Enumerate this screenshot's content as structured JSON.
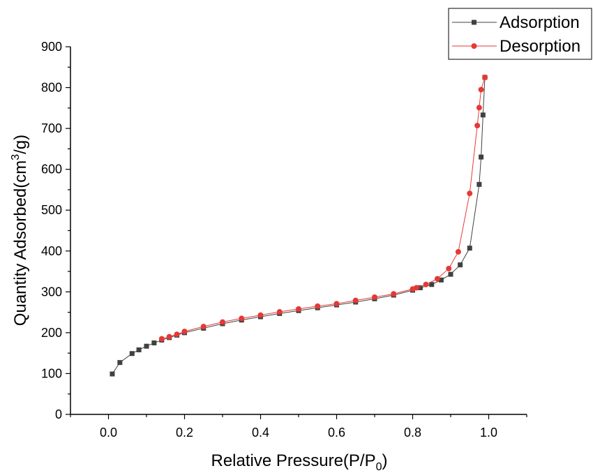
{
  "chart_data": {
    "type": "line",
    "title": "",
    "xlabel": "Relative Pressure(P/P0)",
    "xlabel_parts": {
      "main": "Relative Pressure(P/P",
      "sub": "0",
      "close": ")"
    },
    "ylabel": "Quantity Adsorbed(cm3/g)",
    "ylabel_parts": {
      "main": "Quantity Adsorbed(cm",
      "sup": "3",
      "close": "/g)"
    },
    "xlim": [
      -0.1,
      1.1
    ],
    "ylim": [
      0,
      900
    ],
    "xticks": [
      0.0,
      0.2,
      0.4,
      0.6,
      0.8,
      1.0
    ],
    "xtick_labels": [
      "0.0",
      "0.2",
      "0.4",
      "0.6",
      "0.8",
      "1.0"
    ],
    "yticks": [
      0,
      100,
      200,
      300,
      400,
      500,
      600,
      700,
      800,
      900
    ],
    "ytick_labels": [
      "0",
      "100",
      "200",
      "300",
      "400",
      "500",
      "600",
      "700",
      "800",
      "900"
    ],
    "grid": false,
    "legend_position": "top-right",
    "series": [
      {
        "name": "Adsorption",
        "color": "#404040",
        "marker": "square",
        "x": [
          0.01,
          0.03,
          0.062,
          0.08,
          0.1,
          0.12,
          0.14,
          0.16,
          0.18,
          0.2,
          0.25,
          0.3,
          0.35,
          0.4,
          0.45,
          0.5,
          0.55,
          0.6,
          0.65,
          0.7,
          0.75,
          0.8,
          0.82,
          0.85,
          0.875,
          0.9,
          0.925,
          0.95,
          0.975,
          0.98,
          0.985,
          0.99
        ],
        "y": [
          99,
          127,
          149,
          158,
          167,
          175,
          182,
          188,
          194,
          200,
          211,
          222,
          231,
          239,
          247,
          254,
          261,
          268,
          275,
          283,
          292,
          304,
          310,
          318,
          329,
          343,
          366,
          407,
          563,
          630,
          733,
          825
        ]
      },
      {
        "name": "Desorption",
        "color": "#e53935",
        "marker": "circle",
        "x": [
          0.99,
          0.98,
          0.975,
          0.97,
          0.95,
          0.92,
          0.895,
          0.865,
          0.835,
          0.81,
          0.8,
          0.75,
          0.7,
          0.65,
          0.6,
          0.55,
          0.5,
          0.45,
          0.4,
          0.35,
          0.3,
          0.25,
          0.2,
          0.18,
          0.16,
          0.14
        ],
        "y": [
          825,
          795,
          751,
          707,
          541,
          398,
          357,
          332,
          318,
          310,
          307,
          295,
          287,
          279,
          271,
          265,
          258,
          251,
          243,
          235,
          226,
          215,
          203,
          196,
          190,
          185
        ]
      }
    ]
  }
}
